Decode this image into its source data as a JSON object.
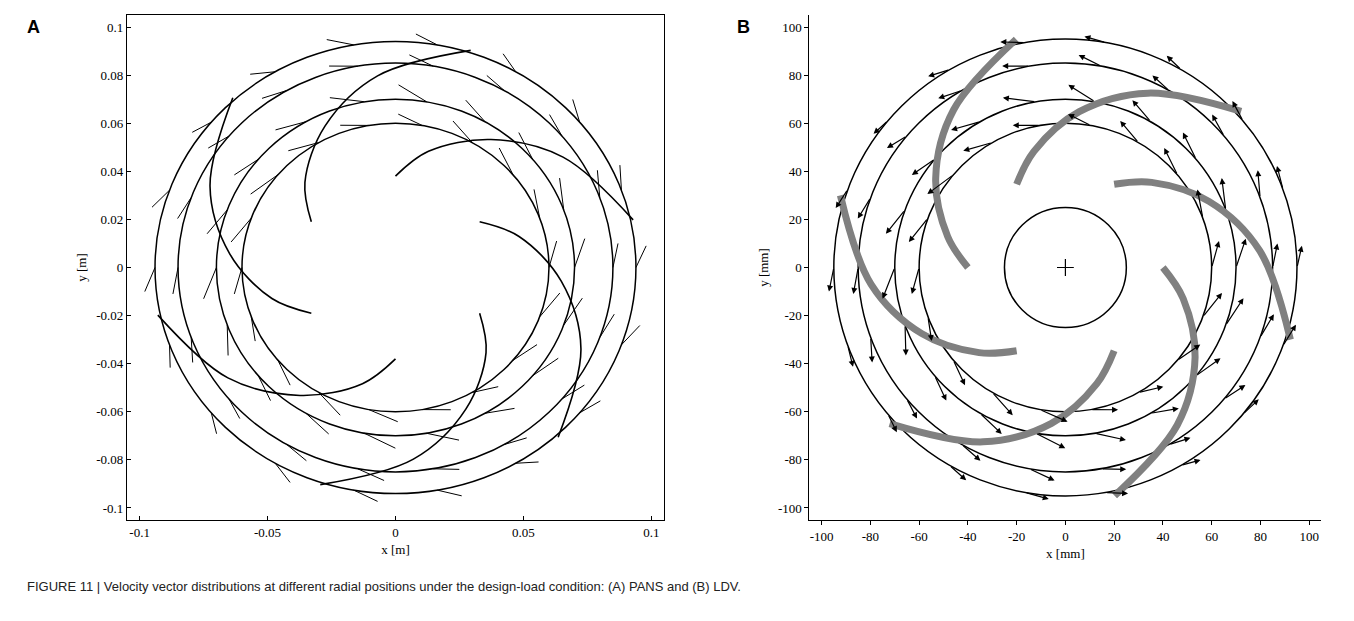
{
  "caption": "FIGURE 11 | Velocity vector distributions at different radial positions under the design-load condition: (A) PANS and (B) LDV.",
  "chart_data": [
    {
      "type": "vector",
      "panel": "A",
      "xlabel": "x [m]",
      "ylabel": "y [m]",
      "xlim": [
        -0.105,
        0.105
      ],
      "ylim": [
        -0.105,
        0.105
      ],
      "xticks": [
        -0.1,
        -0.05,
        0,
        0.05,
        0.1
      ],
      "yticks": [
        -0.1,
        -0.08,
        -0.06,
        -0.04,
        -0.02,
        0,
        0.02,
        0.04,
        0.06,
        0.08,
        0.1
      ],
      "marker": "line",
      "color": "#000000",
      "circles": [
        0.06,
        0.07,
        0.085,
        0.094
      ],
      "blades": {
        "color": "#000000",
        "lines": [
          {
            "x": [
              0,
              0.0129,
              0.0373,
              0.0655,
              0.0929
            ],
            "y": [
              0.038,
              0.0483,
              0.0532,
              0.0459,
              0.0198
            ]
          },
          {
            "x": [
              0.0329,
              0.0483,
              0.0648,
              0.0725,
              0.0636
            ],
            "y": [
              0.019,
              0.0129,
              -0.0057,
              -0.0338,
              -0.0706
            ]
          },
          {
            "x": [
              0.0329,
              0.0354,
              0.0275,
              0.007,
              -0.0294
            ],
            "y": [
              -0.019,
              -0.0354,
              -0.0589,
              -0.0797,
              -0.0903
            ]
          },
          {
            "x": [
              0,
              -0.0129,
              -0.0373,
              -0.0655,
              -0.0929
            ],
            "y": [
              -0.038,
              -0.0483,
              -0.0532,
              -0.0459,
              -0.0198
            ]
          },
          {
            "x": [
              -0.0329,
              -0.0483,
              -0.0648,
              -0.0725,
              -0.0636
            ],
            "y": [
              -0.019,
              -0.0129,
              0.0057,
              0.0338,
              0.0706
            ]
          },
          {
            "x": [
              -0.0329,
              -0.0354,
              -0.0275,
              -0.007,
              0.0294
            ],
            "y": [
              0.019,
              0.0354,
              0.0589,
              0.0797,
              0.0903
            ]
          }
        ]
      },
      "vectors": {
        "theta": [
          0,
          20,
          40,
          60,
          80,
          100,
          120,
          140,
          160,
          180,
          200,
          220,
          240,
          260,
          280,
          300,
          320,
          340
        ],
        "rings": [
          {
            "r": 0.06,
            "u_t": [
              0.011,
              0.012,
              0.012,
              0.011,
              0.01,
              0.011,
              0.012,
              0.013,
              0.012,
              0.011,
              0.01,
              0.011,
              0.012,
              0.012,
              0.011,
              0.01,
              0.011,
              0.012
            ],
            "u_r": [
              0.003,
              0.002,
              0.003,
              0.004,
              0.003,
              0.002,
              0.003,
              0.003,
              0.004,
              0.003,
              0.002,
              0.003,
              0.004,
              0.003,
              0.002,
              0.003,
              0.003,
              0.004
            ]
          },
          {
            "r": 0.07,
            "u_t": [
              0.012,
              0.013,
              0.012,
              0.011,
              0.012,
              0.013,
              0.012,
              0.011,
              0.012,
              0.013,
              0.012,
              0.011,
              0.012,
              0.013,
              0.012,
              0.011,
              0.012,
              0.013
            ],
            "u_r": [
              0.004,
              0.003,
              0.003,
              0.004,
              0.005,
              0.004,
              0.003,
              0.003,
              0.004,
              0.005,
              0.004,
              0.003,
              0.003,
              0.004,
              0.005,
              0.004,
              0.003,
              0.003
            ]
          },
          {
            "r": 0.085,
            "u_t": [
              0.01,
              0.011,
              0.01,
              0.009,
              0.01,
              0.011,
              0.01,
              0.009,
              0.01,
              0.011,
              0.01,
              0.009,
              0.01,
              0.011,
              0.01,
              0.009,
              0.01,
              0.011
            ],
            "u_r": [
              0.002,
              0.003,
              0.002,
              0.002,
              0.003,
              0.002,
              0.002,
              0.003,
              0.002,
              0.002,
              0.003,
              0.002,
              0.002,
              0.003,
              0.002,
              0.002,
              0.003,
              0.002
            ]
          },
          {
            "r": 0.094,
            "u_t": [
              0.009,
              0.01,
              0.009,
              0.008,
              0.009,
              0.01,
              0.009,
              0.008,
              0.009,
              0.01,
              0.009,
              0.008,
              0.009,
              0.01,
              0.009,
              0.008,
              0.009,
              0.01
            ],
            "u_r": [
              0.004,
              0.003,
              0.004,
              0.004,
              0.003,
              0.004,
              0.004,
              0.003,
              0.004,
              0.004,
              0.003,
              0.004,
              0.004,
              0.003,
              0.004,
              0.004,
              0.003,
              0.004
            ]
          }
        ]
      }
    },
    {
      "type": "vector",
      "panel": "B",
      "xlabel": "x [mm]",
      "ylabel": "y [mm]",
      "xlim": [
        -105,
        105
      ],
      "ylim": [
        -105,
        105
      ],
      "xticks": [
        -100,
        -80,
        -60,
        -40,
        -20,
        0,
        20,
        40,
        60,
        80,
        100
      ],
      "yticks": [
        -100,
        -80,
        -60,
        -40,
        -20,
        0,
        20,
        40,
        60,
        80,
        100
      ],
      "marker": "arrow",
      "color": "#000000",
      "center": [
        0,
        0
      ],
      "circles": [
        25,
        60,
        70,
        85,
        95
      ],
      "blades": {
        "color": "#808080",
        "lines": [
          {
            "x": [
              20,
              35.4,
              58.9,
              79.7,
              92.3
            ],
            "y": [
              34.6,
              35.4,
              27.5,
              7.0,
              -30.0
            ]
          },
          {
            "x": [
              40,
              48.3,
              53.2,
              45.9,
              20.2
            ],
            "y": [
              0,
              -12.9,
              -37.3,
              -65.5,
              -94.9
            ]
          },
          {
            "x": [
              20,
              12.9,
              -5.7,
              -33.8,
              -72.1
            ],
            "y": [
              -34.6,
              -48.3,
              -64.8,
              -72.5,
              -64.9
            ]
          },
          {
            "x": [
              -20,
              -35.4,
              -58.9,
              -79.7,
              -92.3
            ],
            "y": [
              -34.6,
              -35.4,
              -27.5,
              -7.0,
              30.0
            ]
          },
          {
            "x": [
              -40,
              -48.3,
              -53.2,
              -45.9,
              -20.2
            ],
            "y": [
              0,
              12.9,
              37.3,
              65.5,
              94.9
            ]
          },
          {
            "x": [
              -20,
              -12.9,
              5.7,
              33.8,
              72.1
            ],
            "y": [
              34.6,
              48.3,
              64.8,
              72.5,
              64.9
            ]
          }
        ]
      },
      "vectors": {
        "theta": [
          0,
          20,
          40,
          60,
          80,
          100,
          120,
          140,
          160,
          180,
          200,
          220,
          240,
          260,
          280,
          300,
          320,
          340
        ],
        "rings": [
          {
            "r": 60,
            "u_t": [
              11,
              12,
              12,
              11,
              10,
              11,
              12,
              13,
              12,
              11,
              10,
              11,
              12,
              12,
              11,
              10,
              11,
              12
            ],
            "u_r": [
              3,
              2,
              3,
              4,
              3,
              2,
              3,
              3,
              4,
              3,
              2,
              3,
              4,
              3,
              2,
              3,
              3,
              4
            ]
          },
          {
            "r": 70,
            "u_t": [
              12,
              13,
              12,
              11,
              12,
              13,
              12,
              11,
              12,
              13,
              12,
              11,
              12,
              13,
              12,
              11,
              12,
              13
            ],
            "u_r": [
              4,
              3,
              3,
              4,
              5,
              4,
              3,
              3,
              4,
              5,
              4,
              3,
              3,
              4,
              5,
              4,
              3,
              3
            ]
          },
          {
            "r": 85,
            "u_t": [
              10,
              11,
              10,
              9,
              10,
              11,
              10,
              9,
              10,
              11,
              10,
              9,
              10,
              11,
              10,
              9,
              10,
              11
            ],
            "u_r": [
              2,
              3,
              2,
              2,
              3,
              2,
              2,
              3,
              2,
              2,
              3,
              2,
              2,
              3,
              2,
              2,
              3,
              2
            ]
          },
          {
            "r": 95,
            "u_t": [
              9,
              10,
              9,
              8,
              9,
              10,
              9,
              8,
              9,
              10,
              9,
              8,
              9,
              10,
              9,
              8,
              9,
              10
            ],
            "u_r": [
              2,
              1,
              2,
              2,
              1,
              2,
              2,
              1,
              2,
              2,
              1,
              2,
              2,
              1,
              2,
              2,
              1,
              2
            ]
          }
        ]
      }
    }
  ]
}
